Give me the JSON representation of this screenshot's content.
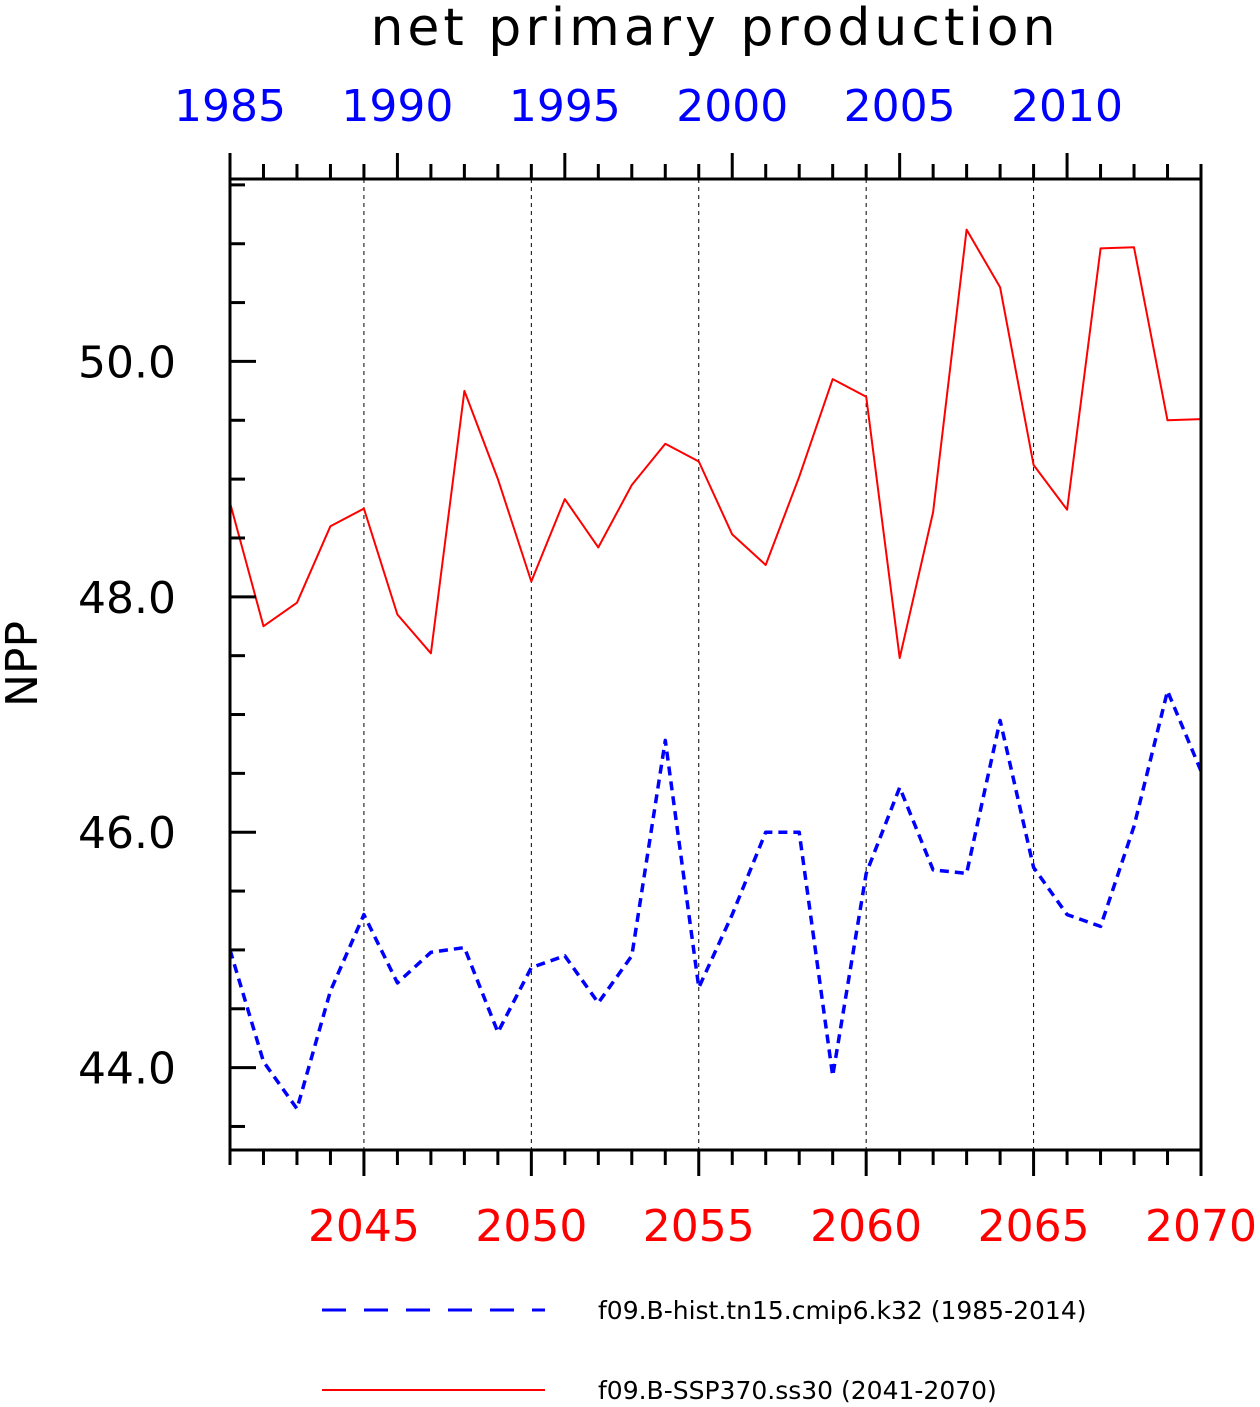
{
  "chart_data": {
    "type": "line",
    "title": "net primary production",
    "ylabel": "NPP",
    "ylim": [
      43.3,
      51.55
    ],
    "yticks": [
      44.0,
      46.0,
      48.0,
      50.0
    ],
    "ytick_labels": [
      "44.0",
      "46.0",
      "48.0",
      "50.0"
    ],
    "grid": "vertical dashed at major x ticks",
    "legend_position": "bottom",
    "top_axis": {
      "color": "#0000ff",
      "range": [
        1985,
        2014
      ],
      "ticks": [
        1985,
        1990,
        1995,
        2000,
        2005,
        2010
      ],
      "tick_labels": [
        "1985",
        "1990",
        "1995",
        "2000",
        "2005",
        "2010"
      ]
    },
    "bottom_axis": {
      "color": "#ff0000",
      "range": [
        2041,
        2070
      ],
      "ticks": [
        2045,
        2050,
        2055,
        2060,
        2065,
        2070
      ],
      "tick_labels": [
        "2045",
        "2050",
        "2055",
        "2060",
        "2065",
        "2070"
      ]
    },
    "series": [
      {
        "name": "f09.B-hist.tn15.cmip6.k32 (1985-2014)",
        "color": "#0000ff",
        "style": "dashed",
        "axis": "top",
        "x": [
          1985,
          1986,
          1987,
          1988,
          1989,
          1990,
          1991,
          1992,
          1993,
          1994,
          1995,
          1996,
          1997,
          1998,
          1999,
          2000,
          2001,
          2002,
          2003,
          2004,
          2005,
          2006,
          2007,
          2008,
          2009,
          2010,
          2011,
          2012,
          2013,
          2014
        ],
        "values": [
          45.0,
          44.05,
          43.65,
          44.65,
          45.3,
          44.72,
          44.98,
          45.02,
          44.3,
          44.85,
          44.95,
          44.55,
          44.95,
          46.78,
          44.68,
          45.3,
          46.0,
          46.0,
          43.93,
          45.65,
          46.38,
          45.68,
          45.65,
          46.95,
          45.7,
          45.3,
          45.2,
          46.05,
          47.2,
          46.52
        ]
      },
      {
        "name": "f09.B-SSP370.ss30 (2041-2070)",
        "color": "#ff0000",
        "style": "solid",
        "axis": "bottom",
        "x": [
          2041,
          2042,
          2043,
          2044,
          2045,
          2046,
          2047,
          2048,
          2049,
          2050,
          2051,
          2052,
          2053,
          2054,
          2055,
          2056,
          2057,
          2058,
          2059,
          2060,
          2061,
          2062,
          2063,
          2064,
          2065,
          2066,
          2067,
          2068,
          2069,
          2070
        ],
        "values": [
          48.8,
          47.75,
          47.95,
          48.6,
          48.75,
          47.85,
          47.52,
          49.75,
          49.0,
          48.13,
          48.83,
          48.42,
          48.95,
          49.3,
          49.15,
          48.53,
          48.27,
          49.02,
          49.85,
          49.7,
          47.48,
          48.72,
          51.12,
          50.63,
          49.12,
          48.74,
          50.96,
          50.97,
          49.5,
          49.51
        ]
      }
    ]
  }
}
